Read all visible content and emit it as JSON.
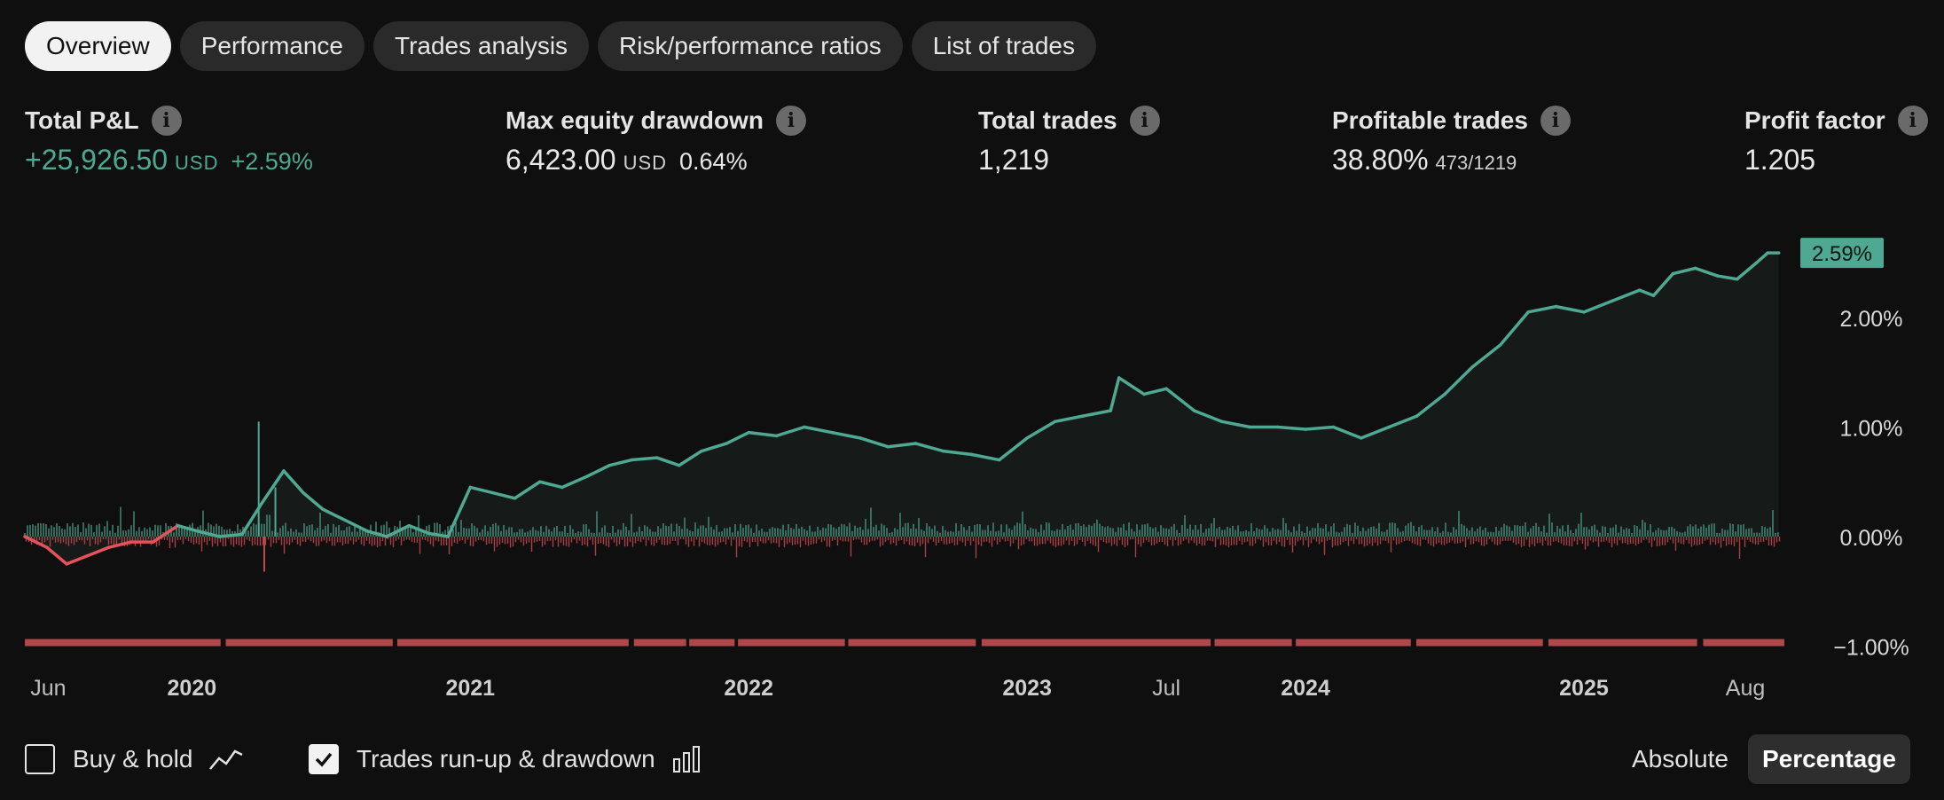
{
  "tabs": [
    {
      "label": "Overview",
      "active": true
    },
    {
      "label": "Performance",
      "active": false
    },
    {
      "label": "Trades analysis",
      "active": false
    },
    {
      "label": "Risk/performance ratios",
      "active": false
    },
    {
      "label": "List of trades",
      "active": false
    }
  ],
  "stats": {
    "total_pnl": {
      "label": "Total P&L",
      "value": "+25,926.50",
      "currency": "USD",
      "percent": "+2.59%"
    },
    "max_drawdown": {
      "label": "Max equity drawdown",
      "value": "6,423.00",
      "currency": "USD",
      "percent": "0.64%"
    },
    "total_trades": {
      "label": "Total trades",
      "value": "1,219"
    },
    "profitable_trades": {
      "label": "Profitable trades",
      "value": "38.80%",
      "fraction": "473/1219"
    },
    "profit_factor": {
      "label": "Profit factor",
      "value": "1.205"
    }
  },
  "info_glyph": "i",
  "chart_data": {
    "type": "line",
    "y_axis": {
      "ticks": [
        "2.00%",
        "1.00%",
        "0.00%",
        "−1.00%"
      ],
      "tick_values": [
        2.0,
        1.0,
        0.0,
        -1.0
      ],
      "range": [
        -1.0,
        2.8
      ],
      "position": "right"
    },
    "x_axis": {
      "ticks": [
        {
          "label": "Jun",
          "x": 2019.42,
          "bold": false
        },
        {
          "label": "2020",
          "x": 2020.0,
          "bold": true
        },
        {
          "label": "2021",
          "x": 2021.0,
          "bold": true
        },
        {
          "label": "2022",
          "x": 2022.0,
          "bold": true
        },
        {
          "label": "2023",
          "x": 2023.0,
          "bold": true
        },
        {
          "label": "Jul",
          "x": 2023.5,
          "bold": false
        },
        {
          "label": "2024",
          "x": 2024.0,
          "bold": true
        },
        {
          "label": "2025",
          "x": 2025.0,
          "bold": true
        },
        {
          "label": "Aug",
          "x": 2025.58,
          "bold": false
        }
      ],
      "range": [
        2019.4,
        2025.72
      ]
    },
    "last_value_label": "2.59%",
    "series": [
      {
        "role": "equity",
        "color_positive": "#4fa891",
        "color_negative": "#e5525a",
        "x": [
          2019.4,
          2019.48,
          2019.55,
          2019.62,
          2019.7,
          2019.78,
          2019.86,
          2019.95,
          2020.02,
          2020.1,
          2020.18,
          2020.25,
          2020.33,
          2020.4,
          2020.47,
          2020.55,
          2020.63,
          2020.7,
          2020.78,
          2020.85,
          2020.92,
          2021.0,
          2021.08,
          2021.16,
          2021.25,
          2021.33,
          2021.42,
          2021.5,
          2021.58,
          2021.67,
          2021.75,
          2021.83,
          2021.92,
          2022.0,
          2022.1,
          2022.2,
          2022.3,
          2022.4,
          2022.5,
          2022.6,
          2022.7,
          2022.8,
          2022.9,
          2023.0,
          2023.1,
          2023.2,
          2023.3,
          2023.33,
          2023.42,
          2023.5,
          2023.6,
          2023.7,
          2023.8,
          2023.9,
          2024.0,
          2024.1,
          2024.2,
          2024.3,
          2024.4,
          2024.5,
          2024.6,
          2024.7,
          2024.8,
          2024.9,
          2025.0,
          2025.1,
          2025.2,
          2025.25,
          2025.32,
          2025.4,
          2025.48,
          2025.55,
          2025.62,
          2025.66,
          2025.7
        ],
        "y": [
          0.0,
          -0.1,
          -0.25,
          -0.18,
          -0.1,
          -0.05,
          -0.05,
          0.1,
          0.05,
          0.0,
          0.02,
          0.3,
          0.6,
          0.4,
          0.25,
          0.15,
          0.05,
          0.0,
          0.1,
          0.03,
          0.0,
          0.45,
          0.4,
          0.35,
          0.5,
          0.45,
          0.55,
          0.65,
          0.7,
          0.72,
          0.65,
          0.78,
          0.85,
          0.95,
          0.92,
          1.0,
          0.95,
          0.9,
          0.82,
          0.85,
          0.78,
          0.75,
          0.7,
          0.9,
          1.05,
          1.1,
          1.15,
          1.45,
          1.3,
          1.35,
          1.15,
          1.05,
          1.0,
          1.0,
          0.98,
          1.0,
          0.9,
          1.0,
          1.1,
          1.3,
          1.55,
          1.75,
          2.05,
          2.1,
          2.05,
          2.15,
          2.25,
          2.2,
          2.4,
          2.45,
          2.38,
          2.35,
          2.5,
          2.59,
          2.59
        ]
      },
      {
        "role": "run-up-drawdown",
        "color_runup": "#4fa891",
        "color_drawdown": "#c24a4e",
        "x": [
          2020.24,
          2020.26,
          2020.3
        ],
        "y": [
          1.05,
          -0.32,
          0.45
        ]
      }
    ],
    "bottom_band": {
      "color": "#b0474b",
      "value": -1.0
    }
  },
  "bottom": {
    "buy_hold": {
      "label": "Buy & hold",
      "checked": false,
      "icon": "line-chart-icon"
    },
    "runup_drawdown": {
      "label": "Trades run-up & drawdown",
      "checked": true,
      "icon": "bar-chart-icon"
    },
    "mode": {
      "absolute": "Absolute",
      "percentage": "Percentage",
      "selected": "percentage"
    }
  }
}
